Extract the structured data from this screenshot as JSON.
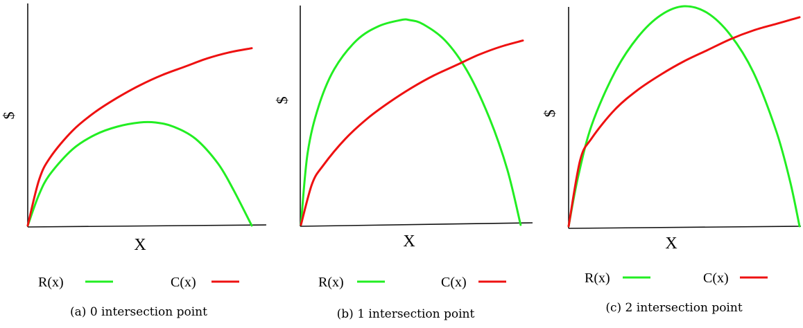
{
  "colors": {
    "revenue": "#22ee22",
    "cost": "#ee1111",
    "axis": "#111111"
  },
  "chart_data": [
    {
      "type": "line",
      "caption": "(a) 0 intersection point",
      "xlabel": "X",
      "ylabel": "$",
      "xlim": [
        0,
        1
      ],
      "ylim": [
        0,
        1
      ],
      "grid": false,
      "legend_placement": "bottom",
      "series": [
        {
          "name": "R(x)",
          "color": "#22ee22",
          "x": [
            0,
            0.05,
            0.1,
            0.2,
            0.3,
            0.4,
            0.5,
            0.57,
            0.65,
            0.75,
            0.85,
            0.92,
            1.0
          ],
          "y": [
            0,
            0.15,
            0.25,
            0.37,
            0.44,
            0.48,
            0.5,
            0.5,
            0.48,
            0.42,
            0.3,
            0.17,
            0
          ]
        },
        {
          "name": "C(x)",
          "color": "#ee1111",
          "x": [
            0,
            0.05,
            0.1,
            0.2,
            0.3,
            0.4,
            0.5,
            0.6,
            0.7,
            0.8,
            0.9,
            1.0
          ],
          "y": [
            0,
            0.22,
            0.33,
            0.46,
            0.55,
            0.62,
            0.68,
            0.73,
            0.77,
            0.81,
            0.84,
            0.86
          ]
        }
      ]
    },
    {
      "type": "line",
      "caption": "(b) 1 intersection point",
      "xlabel": "X",
      "ylabel": "$",
      "xlim": [
        0,
        1
      ],
      "ylim": [
        0,
        1
      ],
      "grid": false,
      "legend_placement": "bottom",
      "series": [
        {
          "name": "R(x)",
          "color": "#22ee22",
          "x": [
            0,
            0.03,
            0.08,
            0.15,
            0.25,
            0.35,
            0.45,
            0.49,
            0.55,
            0.65,
            0.75,
            0.85,
            0.93,
            0.99
          ],
          "y": [
            0,
            0.35,
            0.58,
            0.76,
            0.9,
            0.97,
            1.0,
            1.0,
            0.98,
            0.9,
            0.75,
            0.52,
            0.27,
            0
          ]
        },
        {
          "name": "C(x)",
          "color": "#ee1111",
          "x": [
            0,
            0.05,
            0.1,
            0.2,
            0.3,
            0.4,
            0.5,
            0.6,
            0.7,
            0.8,
            0.9,
            1.0
          ],
          "y": [
            0,
            0.2,
            0.29,
            0.42,
            0.52,
            0.6,
            0.67,
            0.73,
            0.78,
            0.83,
            0.87,
            0.9
          ]
        }
      ]
    },
    {
      "type": "line",
      "caption": "(c) 2 intersection point",
      "xlabel": "X",
      "ylabel": "$",
      "xlim": [
        0,
        1
      ],
      "ylim": [
        0,
        1
      ],
      "grid": false,
      "legend_placement": "bottom",
      "series": [
        {
          "name": "R(x)",
          "color": "#22ee22",
          "x": [
            0,
            0.04,
            0.1,
            0.2,
            0.3,
            0.4,
            0.5,
            0.6,
            0.7,
            0.8,
            0.9,
            0.96,
            1.0
          ],
          "y": [
            0,
            0.22,
            0.46,
            0.7,
            0.86,
            0.96,
            1.0,
            0.97,
            0.87,
            0.7,
            0.43,
            0.2,
            0
          ]
        },
        {
          "name": "C(x)",
          "color": "#ee1111",
          "x": [
            0,
            0.05,
            0.1,
            0.2,
            0.3,
            0.4,
            0.5,
            0.6,
            0.7,
            0.8,
            0.9,
            1.0
          ],
          "y": [
            0,
            0.3,
            0.4,
            0.53,
            0.62,
            0.69,
            0.75,
            0.8,
            0.85,
            0.89,
            0.92,
            0.95
          ]
        }
      ]
    }
  ]
}
